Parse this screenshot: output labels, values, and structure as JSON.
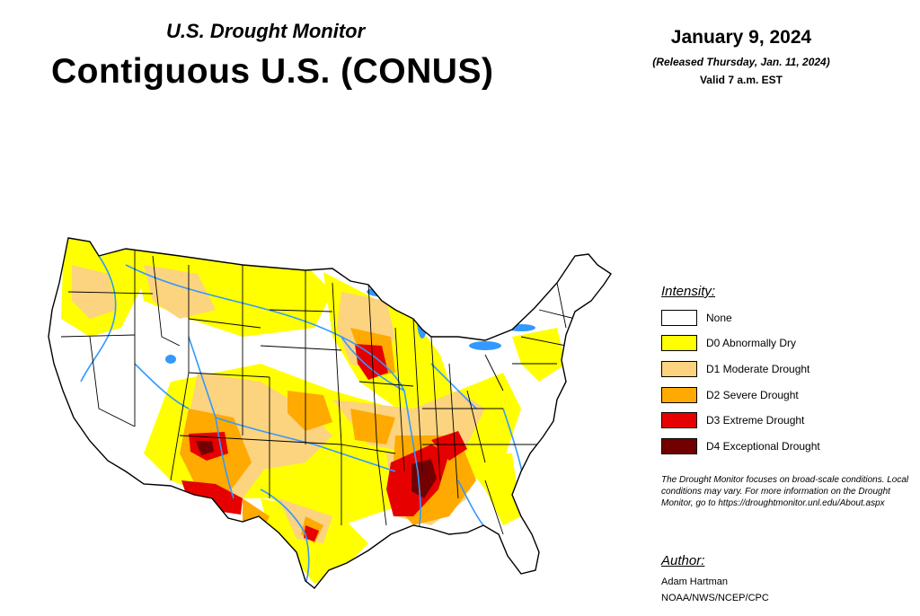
{
  "header": {
    "subtitle": "U.S. Drought Monitor",
    "title": "Contiguous U.S. (CONUS)",
    "date": "January 9, 2024",
    "released": "(Released Thursday, Jan. 11, 2024)",
    "valid": "Valid 7 a.m. EST"
  },
  "legend": {
    "heading": "Intensity:",
    "items": [
      {
        "label": "None",
        "color": "#ffffff"
      },
      {
        "label": "D0 Abnormally Dry",
        "color": "#ffff00"
      },
      {
        "label": "D1 Moderate Drought",
        "color": "#fcd37f"
      },
      {
        "label": "D2 Severe Drought",
        "color": "#ffaa00"
      },
      {
        "label": "D3 Extreme Drought",
        "color": "#e60000"
      },
      {
        "label": "D4 Exceptional Drought",
        "color": "#730000"
      }
    ]
  },
  "note": "The Drought Monitor focuses on broad-scale conditions. Local conditions may vary. For more information on the Drought Monitor, go to https://droughtmonitor.unl.edu/About.aspx",
  "author": {
    "heading": "Author:",
    "name": "Adam Hartman",
    "org": "NOAA/NWS/NCEP/CPC"
  },
  "map": {
    "water_color": "#3399ff",
    "border_color": "#000000"
  }
}
